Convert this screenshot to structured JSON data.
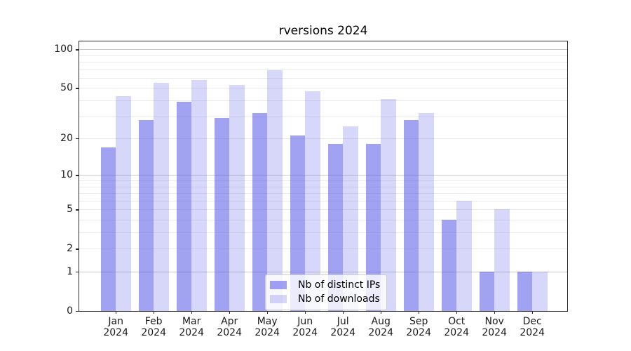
{
  "chart_data": {
    "type": "bar",
    "title": "rversions 2024",
    "xlabel": "",
    "ylabel": "",
    "scale": "log1p",
    "categories": [
      "Jan",
      "Feb",
      "Mar",
      "Apr",
      "May",
      "Jun",
      "Jul",
      "Aug",
      "Sep",
      "Oct",
      "Nov",
      "Dec"
    ],
    "x_year_label": "2024",
    "series": [
      {
        "name": "Nb of distinct IPs",
        "color": "rgba(80,80,230,0.53)",
        "values": [
          17,
          28,
          39,
          29,
          32,
          21,
          18,
          18,
          28,
          4,
          1,
          1
        ]
      },
      {
        "name": "Nb of downloads",
        "color": "rgba(80,80,230,0.23)",
        "values": [
          43,
          55,
          58,
          53,
          69,
          47,
          25,
          41,
          32,
          6,
          5,
          1
        ]
      }
    ],
    "y_ticks": [
      0,
      1,
      2,
      5,
      10,
      20,
      50,
      100
    ],
    "ylim": [
      0,
      115
    ],
    "grid_on": true,
    "grid_major": [
      1,
      10,
      100
    ],
    "grid_minor": [
      2,
      3,
      4,
      5,
      6,
      7,
      8,
      9,
      20,
      30,
      40,
      50,
      60,
      70,
      80,
      90
    ],
    "legend_position": "lower-center",
    "colors": {
      "bars_distinct_ips": "#a0a0f0",
      "bars_downloads": "#d6d6f7",
      "grid_major": "#c8c8c8",
      "grid_minor": "#eaeaea",
      "spine": "#2b2b2b",
      "axis_text": "#1a1a1a"
    }
  }
}
